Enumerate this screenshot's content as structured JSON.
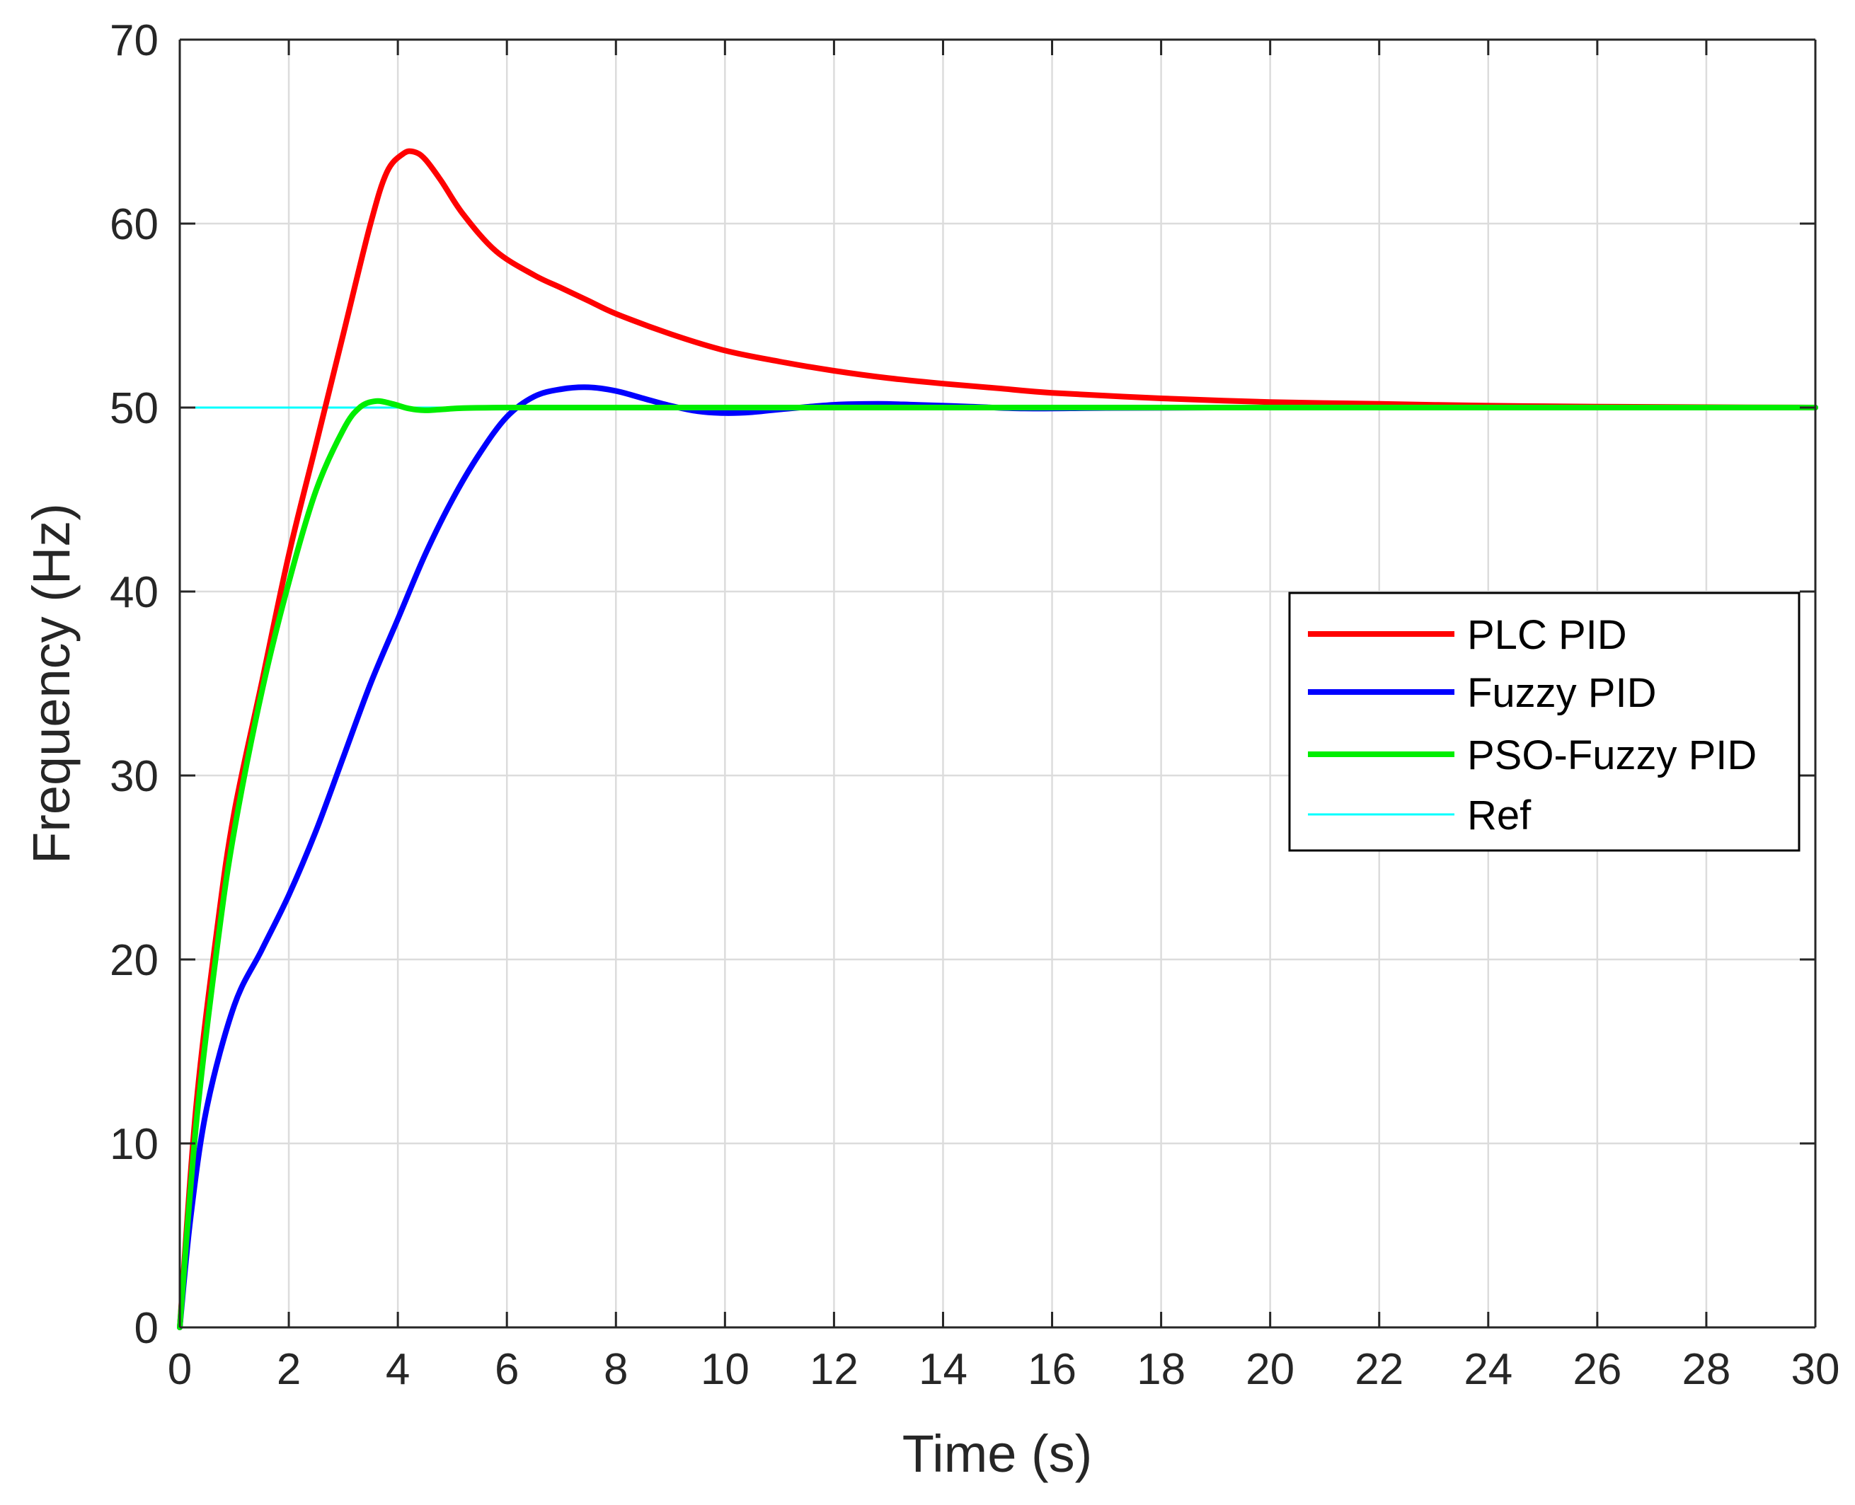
{
  "chart_data": {
    "type": "line",
    "title": "",
    "xlabel": "Time (s)",
    "ylabel": "Frequency (Hz)",
    "xlim": [
      0,
      30
    ],
    "ylim": [
      0,
      70
    ],
    "xticks": [
      0,
      2,
      4,
      6,
      8,
      10,
      12,
      14,
      16,
      18,
      20,
      22,
      24,
      26,
      28,
      30
    ],
    "yticks": [
      0,
      10,
      20,
      30,
      40,
      50,
      60,
      70
    ],
    "grid": true,
    "legend_position": "right",
    "series": [
      {
        "name": "PLC PID",
        "color": "#ff0000",
        "width": "thick",
        "x": [
          0,
          0.3,
          0.7,
          1.0,
          1.5,
          2.0,
          2.5,
          3.0,
          3.5,
          3.8,
          4.1,
          4.3,
          4.5,
          4.8,
          5.2,
          5.8,
          6.5,
          7.0,
          7.5,
          8.0,
          9.0,
          10.0,
          11.0,
          12.0,
          13.0,
          14.0,
          15.0,
          16.0,
          18.0,
          20.0,
          22.0,
          24.0,
          26.0,
          28.0,
          30.0
        ],
        "y": [
          0,
          12,
          22,
          28,
          35,
          42,
          48,
          54,
          60,
          62.8,
          63.8,
          63.9,
          63.5,
          62.3,
          60.5,
          58.5,
          57.2,
          56.5,
          55.8,
          55.1,
          54.0,
          53.1,
          52.5,
          52.0,
          51.6,
          51.3,
          51.05,
          50.8,
          50.5,
          50.3,
          50.2,
          50.1,
          50.05,
          50.02,
          50.0
        ]
      },
      {
        "name": "Fuzzy PID",
        "color": "#0000ff",
        "width": "thick",
        "x": [
          0,
          0.2,
          0.5,
          1.0,
          1.5,
          2.0,
          2.5,
          3.0,
          3.5,
          4.0,
          4.5,
          5.0,
          5.5,
          6.0,
          6.5,
          7.0,
          7.5,
          8.0,
          8.5,
          9.0,
          9.5,
          10.0,
          10.5,
          11.0,
          12.0,
          12.8,
          13.5,
          14.5,
          15.5,
          17.0,
          19.0,
          22.0,
          26.0,
          30.0
        ],
        "y": [
          0,
          6,
          12,
          17.5,
          20.5,
          23.5,
          27,
          31,
          35,
          38.5,
          42,
          45,
          47.5,
          49.5,
          50.6,
          51.0,
          51.1,
          50.9,
          50.5,
          50.1,
          49.8,
          49.7,
          49.75,
          49.9,
          50.15,
          50.2,
          50.15,
          50.05,
          49.95,
          49.98,
          50.0,
          50.0,
          50.0,
          50.0
        ]
      },
      {
        "name": "PSO-Fuzzy PID",
        "color": "#00ee00",
        "width": "thick",
        "x": [
          0,
          0.3,
          0.7,
          1.0,
          1.5,
          2.0,
          2.5,
          3.0,
          3.3,
          3.6,
          3.9,
          4.2,
          4.5,
          4.8,
          5.2,
          6.0,
          7.0,
          8.0,
          10.0,
          15.0,
          20.0,
          25.0,
          30.0
        ],
        "y": [
          0,
          11,
          21,
          27,
          34.5,
          40.5,
          45.5,
          48.8,
          50.0,
          50.35,
          50.2,
          49.95,
          49.85,
          49.9,
          49.97,
          50.0,
          50.0,
          50.0,
          50.0,
          50.0,
          50.0,
          50.0,
          50.0
        ]
      },
      {
        "name": "Ref",
        "color": "#00ffff",
        "width": "thin",
        "x": [
          0,
          30
        ],
        "y": [
          50,
          50
        ]
      }
    ]
  }
}
